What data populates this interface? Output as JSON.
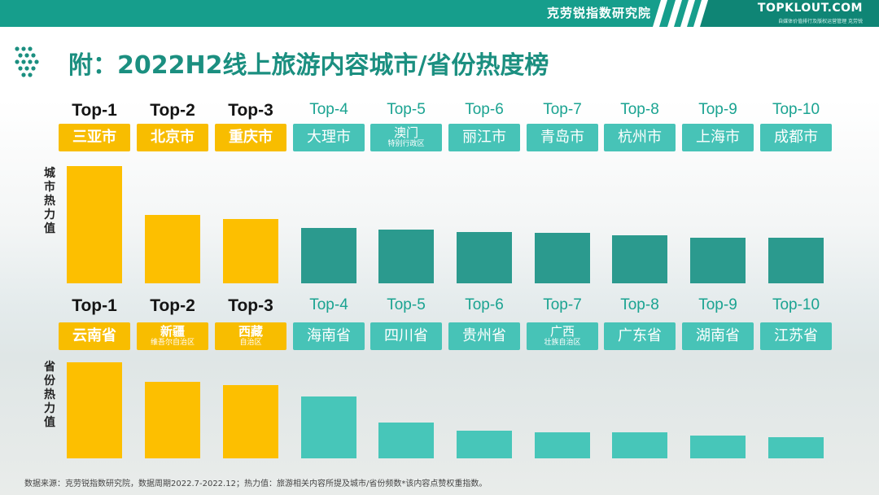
{
  "header": {
    "institute": "克劳锐指数研究院",
    "site_url": "TOPKLOUT.COM",
    "site_tagline": "自媒体价值排行及版权运营管理 克劳锐"
  },
  "title": "附：2022H2线上旅游内容城市/省份热度榜",
  "chart_data": [
    {
      "type": "bar",
      "ylabel": "城市热力值",
      "ranks": [
        "Top-1",
        "Top-2",
        "Top-3",
        "Top-4",
        "Top-5",
        "Top-6",
        "Top-7",
        "Top-8",
        "Top-9",
        "Top-10"
      ],
      "categories": [
        {
          "name": "三亚市",
          "sub": ""
        },
        {
          "name": "北京市",
          "sub": ""
        },
        {
          "name": "重庆市",
          "sub": ""
        },
        {
          "name": "大理市",
          "sub": ""
        },
        {
          "name": "澳门",
          "sub": "特别行政区"
        },
        {
          "name": "丽江市",
          "sub": ""
        },
        {
          "name": "青岛市",
          "sub": ""
        },
        {
          "name": "杭州市",
          "sub": ""
        },
        {
          "name": "上海市",
          "sub": ""
        },
        {
          "name": "成都市",
          "sub": ""
        }
      ],
      "values": [
        100,
        58,
        55,
        47,
        46,
        44,
        43,
        41,
        39,
        39
      ],
      "ylim": [
        0,
        100
      ]
    },
    {
      "type": "bar",
      "ylabel": "省份热力值",
      "ranks": [
        "Top-1",
        "Top-2",
        "Top-3",
        "Top-4",
        "Top-5",
        "Top-6",
        "Top-7",
        "Top-8",
        "Top-9",
        "Top-10"
      ],
      "categories": [
        {
          "name": "云南省",
          "sub": ""
        },
        {
          "name": "新疆",
          "sub": "维吾尔自治区"
        },
        {
          "name": "西藏",
          "sub": "自治区"
        },
        {
          "name": "海南省",
          "sub": ""
        },
        {
          "name": "四川省",
          "sub": ""
        },
        {
          "name": "贵州省",
          "sub": ""
        },
        {
          "name": "广西",
          "sub": "壮族自治区"
        },
        {
          "name": "广东省",
          "sub": ""
        },
        {
          "name": "湖南省",
          "sub": ""
        },
        {
          "name": "江苏省",
          "sub": ""
        }
      ],
      "values": [
        100,
        80,
        76,
        64,
        37,
        29,
        27,
        27,
        24,
        22
      ],
      "ylim": [
        0,
        100
      ]
    }
  ],
  "colors": {
    "top3": "#fdbf00",
    "city_rest": "#2b9a8e",
    "province_rest": "#47c6b9",
    "label_box_rest": "#47c3b7",
    "title": "#1b8f80",
    "header_band": "#169e8c"
  },
  "footnote": "数据来源：克劳锐指数研究院，数据周期2022.7-2022.12；热力值：旅游相关内容所提及城市/省份频数*该内容点赞权重指数。"
}
